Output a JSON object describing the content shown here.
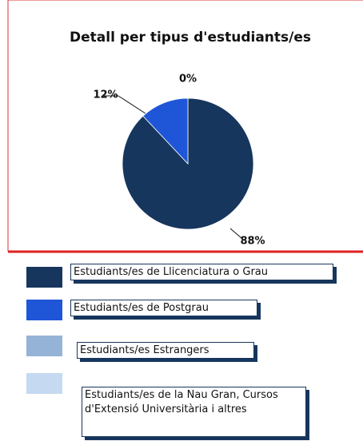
{
  "chart_data": {
    "type": "pie",
    "title": "Detall per tipus d'estudiants/es",
    "categories": [
      "Estudiants/es de Llicenciatura o Grau",
      "Estudiants/es de Postgrau",
      "Estudiants/es Estrangers",
      "Estudiants/es de la Nau Gran, Cursos d'Extensió Universitària i altres"
    ],
    "values": [
      88,
      12,
      0,
      0
    ],
    "value_labels": [
      "88%",
      "12%",
      "0%",
      null
    ],
    "colors": [
      "#17365d",
      "#1f56d8",
      "#95b3d7",
      "#c5d9f1"
    ]
  }
}
